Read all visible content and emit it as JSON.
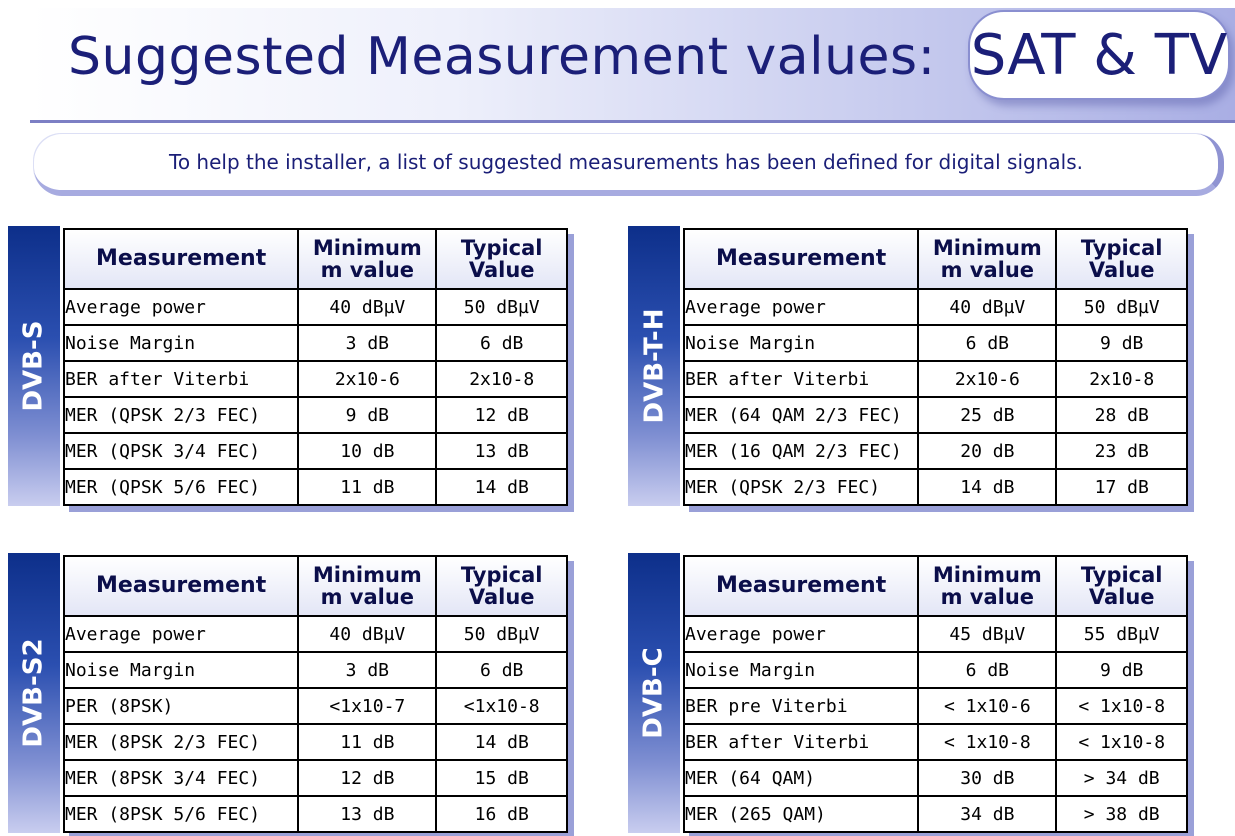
{
  "header": {
    "title": "Suggested Measurement values:",
    "pill": "SAT & TV"
  },
  "intro": "To help the installer, a list of suggested measurements has been defined for digital signals.",
  "table_headers": {
    "measurement": "Measurement",
    "minimum": "Minimum m value",
    "typical": "Typical Value"
  },
  "tables": [
    {
      "label": "DVB-S",
      "rows": [
        [
          "Average power",
          "40 dBµV",
          "50 dBµV"
        ],
        [
          "Noise Margin",
          "3 dB",
          "6 dB"
        ],
        [
          "BER after Viterbi",
          "2x10-6",
          "2x10-8"
        ],
        [
          "MER (QPSK 2/3 FEC)",
          "9 dB",
          "12 dB"
        ],
        [
          "MER (QPSK 3/4 FEC)",
          "10 dB",
          "13 dB"
        ],
        [
          "MER (QPSK 5/6 FEC)",
          "11 dB",
          "14 dB"
        ]
      ]
    },
    {
      "label": "DVB-T-H",
      "rows": [
        [
          "Average power",
          "40 dBµV",
          "50 dBµV"
        ],
        [
          "Noise Margin",
          "6 dB",
          "9 dB"
        ],
        [
          "BER after Viterbi",
          "2x10-6",
          "2x10-8"
        ],
        [
          "MER (64 QAM 2/3 FEC)",
          "25 dB",
          "28 dB"
        ],
        [
          "MER (16 QAM 2/3 FEC)",
          "20 dB",
          "23 dB"
        ],
        [
          "MER (QPSK 2/3 FEC)",
          "14 dB",
          "17 dB"
        ]
      ]
    },
    {
      "label": "DVB-S2",
      "rows": [
        [
          "Average power",
          "40 dBµV",
          "50 dBµV"
        ],
        [
          "Noise Margin",
          "3 dB",
          "6 dB"
        ],
        [
          "PER (8PSK)",
          "<1x10-7",
          "<1x10-8"
        ],
        [
          "MER (8PSK 2/3 FEC)",
          "11 dB",
          "14 dB"
        ],
        [
          "MER (8PSK 3/4 FEC)",
          "12 dB",
          "15 dB"
        ],
        [
          "MER (8PSK 5/6 FEC)",
          "13 dB",
          "16 dB"
        ]
      ]
    },
    {
      "label": "DVB-C",
      "rows": [
        [
          "Average power",
          "45 dBµV",
          "55 dBµV"
        ],
        [
          "Noise Margin",
          "6 dB",
          "9 dB"
        ],
        [
          "BER pre Viterbi",
          "< 1x10-6",
          "< 1x10-8"
        ],
        [
          "BER after Viterbi",
          "< 1x10-8",
          "< 1x10-8"
        ],
        [
          "MER (64 QAM)",
          "30 dB",
          "> 34 dB"
        ],
        [
          "MER (265 QAM)",
          "34 dB",
          "> 38 dB"
        ]
      ]
    }
  ]
}
